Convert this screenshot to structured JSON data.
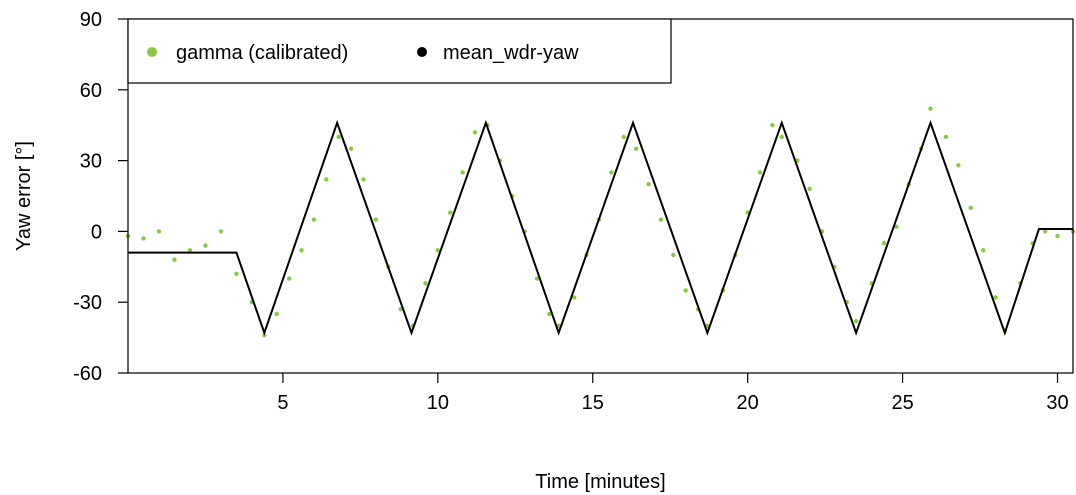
{
  "chart_data": {
    "type": "line",
    "title": "",
    "xlabel": "Time [minutes]",
    "ylabel": "Yaw error [°]",
    "xlim": [
      0,
      30.5
    ],
    "ylim": [
      -60,
      90
    ],
    "x_ticks": [
      5,
      10,
      15,
      20,
      25,
      30
    ],
    "y_ticks": [
      -60,
      -30,
      0,
      30,
      60,
      90
    ],
    "grid": false,
    "legend_position": "top-left",
    "series": [
      {
        "name": "gamma (calibrated)",
        "style": "points",
        "color": "#8dc63f",
        "x": [
          0.0,
          0.5,
          1.0,
          1.5,
          2.0,
          2.5,
          3.0,
          3.5,
          4.0,
          4.4,
          4.8,
          5.2,
          5.6,
          6.0,
          6.4,
          6.8,
          7.2,
          7.6,
          8.0,
          8.4,
          8.8,
          9.2,
          9.6,
          10.0,
          10.4,
          10.8,
          11.2,
          11.6,
          12.0,
          12.4,
          12.8,
          13.2,
          13.6,
          13.9,
          14.4,
          14.8,
          15.2,
          15.6,
          16.0,
          16.4,
          16.8,
          17.2,
          17.6,
          18.0,
          18.4,
          18.7,
          19.2,
          19.6,
          20.0,
          20.4,
          20.8,
          21.1,
          21.6,
          22.0,
          22.4,
          22.8,
          23.2,
          23.5,
          24.0,
          24.4,
          24.8,
          25.2,
          25.6,
          25.9,
          26.4,
          26.8,
          27.2,
          27.6,
          28.0,
          28.3,
          28.8,
          29.2,
          29.6,
          30.0,
          30.5
        ],
        "y": [
          -2,
          -3,
          0,
          -12,
          -8,
          -6,
          0,
          -18,
          -30,
          -44,
          -35,
          -20,
          -8,
          5,
          22,
          40,
          35,
          22,
          5,
          -15,
          -33,
          -40,
          -22,
          -8,
          8,
          25,
          42,
          45,
          30,
          15,
          0,
          -20,
          -35,
          -40,
          -28,
          -10,
          5,
          25,
          40,
          35,
          20,
          5,
          -10,
          -25,
          -33,
          -40,
          -25,
          -10,
          8,
          25,
          45,
          40,
          30,
          18,
          0,
          -15,
          -30,
          -38,
          -22,
          -5,
          2,
          20,
          35,
          52,
          40,
          28,
          10,
          -8,
          -28,
          -42,
          -22,
          -5,
          0,
          -2,
          0
        ]
      },
      {
        "name": "mean_wdr-yaw",
        "style": "line",
        "color": "#000000",
        "x": [
          0.0,
          3.5,
          4.4,
          6.75,
          9.15,
          11.55,
          13.9,
          16.3,
          18.7,
          21.1,
          23.5,
          25.9,
          28.3,
          29.4,
          30.5
        ],
        "y": [
          -9,
          -9,
          -43,
          46,
          -43,
          46,
          -43,
          46,
          -43,
          46,
          -43,
          46,
          -43,
          1,
          1
        ]
      }
    ]
  }
}
